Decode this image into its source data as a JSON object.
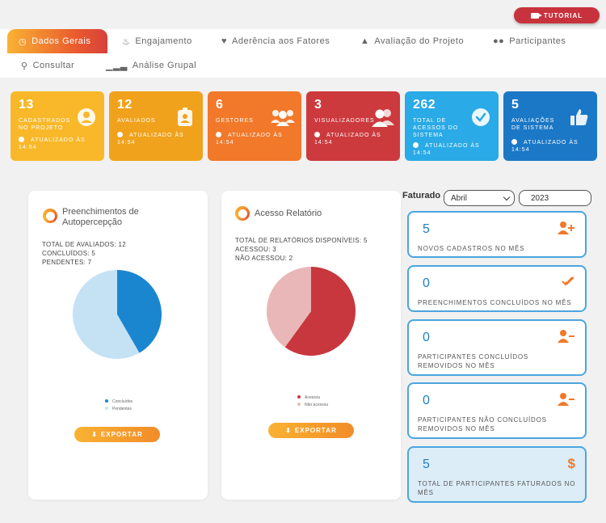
{
  "tutorial": {
    "label": "TUTORIAL",
    "icon": "video-icon"
  },
  "tabs": [
    {
      "label": "Dados Gerais",
      "icon": "chart-icon",
      "active": true
    },
    {
      "label": "Engajamento",
      "icon": "fire-icon"
    },
    {
      "label": "Aderência aos Fatores",
      "icon": "heart-icon"
    },
    {
      "label": "Avaliação do Projeto",
      "icon": "thumbs-up-icon"
    },
    {
      "label": "Participantes",
      "icon": "users-icon"
    },
    {
      "label": "Consultar",
      "icon": "search-icon"
    },
    {
      "label": "Análise Grupal",
      "icon": "signal-icon"
    }
  ],
  "cards": [
    {
      "num": "13",
      "label": "CADASTRADOS NO PROJETO",
      "updated": "ATUALIZADO ÀS 14:54",
      "color": "#f8b82a",
      "icon": "user-circle-icon"
    },
    {
      "num": "12",
      "label": "AVALIADOS",
      "updated": "ATUALIZADO ÀS 14:54",
      "color": "#f0a21c",
      "icon": "badge-icon"
    },
    {
      "num": "6",
      "label": "GESTORES",
      "updated": "ATUALIZADO ÀS 14:54",
      "color": "#f2782a",
      "icon": "group-icon"
    },
    {
      "num": "3",
      "label": "VISUALIZADORES",
      "updated": "ATUALIZADO ÀS 14:54",
      "color": "#cc3a3e",
      "icon": "users-icon"
    },
    {
      "num": "262",
      "label": "TOTAL DE ACESSOS DO SISTEMA",
      "updated": "ATUALIZADO ÀS 14:54",
      "color": "#2aaae6",
      "icon": "check-circle-icon"
    },
    {
      "num": "5",
      "label": "AVALIAÇÕES DE SISTEMA",
      "updated": "ATUALIZADO ÀS 14:54",
      "color": "#1b78c6",
      "icon": "thumbs-up-icon"
    }
  ],
  "panel1": {
    "title": "Preenchimentos de Autopercepção",
    "stats": [
      "TOTAL DE AVALIADOS: 12",
      "CONCLUÍDOS: 5",
      "PENDENTES: 7"
    ],
    "legend": [
      {
        "label": "Concluídos",
        "color": "#1a86d0"
      },
      {
        "label": "Pendentes",
        "color": "#c5e2f5"
      }
    ],
    "export": "EXPORTAR"
  },
  "panel2": {
    "title": "Acesso Relatório",
    "stats": [
      "TOTAL DE RELATÓRIOS DISPONÍVEIS: 5",
      "ACESSOU: 3",
      "NÃO ACESSOU: 2"
    ],
    "legend": [
      {
        "label": "Acessou",
        "color": "#c7373d"
      },
      {
        "label": "Não acessou",
        "color": "#e9b7b7"
      }
    ],
    "export": "EXPORTAR"
  },
  "chart_data": [
    {
      "type": "pie",
      "categories": [
        "Concluídos",
        "Pendentes"
      ],
      "values": [
        5,
        7
      ],
      "colors": [
        "#1a86d0",
        "#c5e2f5"
      ]
    },
    {
      "type": "pie",
      "categories": [
        "Acessou",
        "Não acessou"
      ],
      "values": [
        3,
        2
      ],
      "colors": [
        "#c7373d",
        "#e9b7b7"
      ]
    }
  ],
  "faturado": {
    "label": "Faturado",
    "month": "Abril",
    "year": "2023"
  },
  "monthly": [
    {
      "num": "5",
      "label": "NOVOS CADASTROS NO MÊS",
      "icon": "user-plus-icon"
    },
    {
      "num": "0",
      "label": "PREENCHIMENTOS CONCLUÍDOS NO MÊS",
      "icon": "double-check-icon"
    },
    {
      "num": "0",
      "label": "PARTICIPANTES CONCLUÍDOS REMOVIDOS NO MÊS",
      "icon": "user-minus-icon"
    },
    {
      "num": "0",
      "label": "PARTICIPANTES NÃO CONCLUÍDOS REMOVIDOS NO MÊS",
      "icon": "user-minus-icon"
    },
    {
      "num": "5",
      "label": "TOTAL DE PARTICIPANTES FATURADOS NO MÊS",
      "icon": "dollar-icon"
    }
  ]
}
